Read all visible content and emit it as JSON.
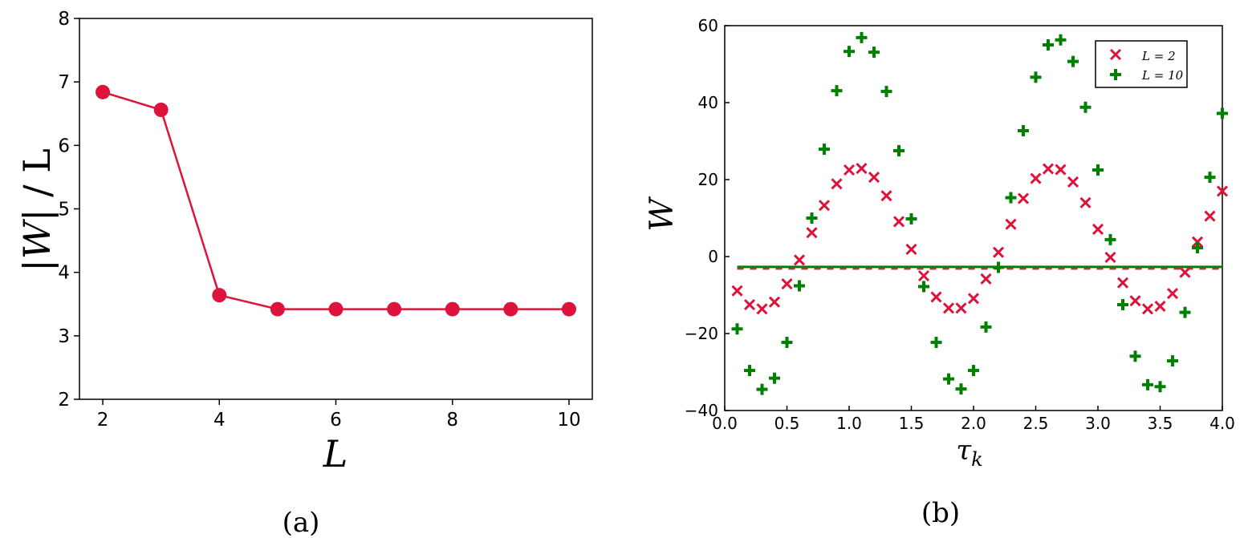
{
  "chart_data": [
    {
      "panel": "(a)",
      "type": "line",
      "title": "",
      "xlabel": "L",
      "ylabel": "|W|/L",
      "xlim": [
        1.6,
        10.4
      ],
      "ylim": [
        2,
        8
      ],
      "xticks": [
        "2",
        "4",
        "6",
        "8",
        "10"
      ],
      "yticks": [
        "2",
        "3",
        "4",
        "5",
        "6",
        "7",
        "8"
      ],
      "grid": false,
      "color": "#dc143c",
      "marker": "circle",
      "x": [
        2,
        3,
        4,
        5,
        6,
        7,
        8,
        9,
        10
      ],
      "values": [
        6.84,
        6.56,
        3.64,
        3.42,
        3.42,
        3.42,
        3.42,
        3.42,
        3.42
      ]
    },
    {
      "panel": "(b)",
      "type": "scatter",
      "title": "",
      "xlabel": "τ_k",
      "ylabel": "W",
      "xlim": [
        0.0,
        4.0
      ],
      "ylim": [
        -40,
        60
      ],
      "xticks": [
        "0.0",
        "0.5",
        "1.0",
        "1.5",
        "2.0",
        "2.5",
        "3.0",
        "3.5",
        "4.0"
      ],
      "yticks": [
        "−40",
        "−20",
        "0",
        "20",
        "40",
        "60"
      ],
      "grid": false,
      "legend": {
        "position": "upper right",
        "entries": [
          "L = 2",
          "L = 10"
        ]
      },
      "x": [
        0.1,
        0.2,
        0.3,
        0.4,
        0.5,
        0.6,
        0.7,
        0.8,
        0.9,
        1.0,
        1.1,
        1.2,
        1.3,
        1.4,
        1.5,
        1.6,
        1.7,
        1.8,
        1.9,
        2.0,
        2.1,
        2.2,
        2.3,
        2.4,
        2.5,
        2.6,
        2.7,
        2.8,
        2.9,
        3.0,
        3.1,
        3.2,
        3.3,
        3.4,
        3.5,
        3.6,
        3.7,
        3.8,
        3.9,
        4.0
      ],
      "series": [
        {
          "name": "L = 2",
          "marker": "x",
          "color": "#dc143c",
          "values": [
            -8.9,
            -12.5,
            -13.6,
            -11.8,
            -7.1,
            -0.9,
            6.2,
            13.3,
            18.9,
            22.5,
            22.9,
            20.6,
            15.8,
            9.1,
            1.9,
            -5.0,
            -10.5,
            -13.4,
            -13.4,
            -10.9,
            -5.8,
            1.1,
            8.4,
            15.1,
            20.3,
            22.8,
            22.6,
            19.4,
            14.0,
            7.1,
            -0.2,
            -6.8,
            -11.5,
            -13.6,
            -12.9,
            -9.6,
            -4.1,
            3.8,
            10.5,
            17.0
          ],
          "mean_line": {
            "value": -2.9,
            "style": "dashed"
          }
        },
        {
          "name": "L = 10",
          "marker": "+",
          "color": "#008000",
          "values": [
            -18.8,
            -29.6,
            -34.5,
            -31.6,
            -22.3,
            -7.6,
            10.0,
            27.9,
            43.1,
            53.3,
            56.9,
            53.1,
            42.9,
            27.5,
            9.8,
            -7.8,
            -22.3,
            -31.8,
            -34.4,
            -29.6,
            -18.3,
            -2.8,
            15.3,
            32.7,
            46.6,
            55.0,
            56.3,
            50.7,
            38.8,
            22.5,
            4.4,
            -12.5,
            -25.9,
            -33.3,
            -33.8,
            -27.1,
            -14.5,
            2.3,
            20.6,
            37.2
          ],
          "mean_line": {
            "value": -2.9,
            "style": "solid"
          }
        }
      ]
    }
  ],
  "captions": {
    "a": "(a)",
    "b": "(b)"
  },
  "labels": {
    "a_xlabel": "L",
    "a_ylabel_bar1": "|",
    "a_ylabel_W": "W",
    "a_ylabel_rest": "| / L",
    "b_xlabel": "τ",
    "b_xlabel_sub": "k",
    "b_ylabel": "W",
    "legend_1": "L = 2",
    "legend_2": "L = 10"
  }
}
